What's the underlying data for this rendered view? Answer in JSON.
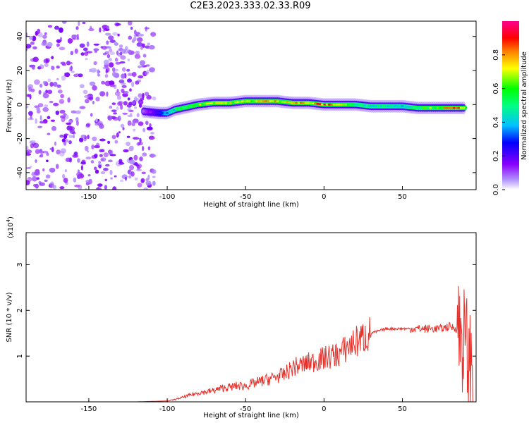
{
  "title": "C2E3.2023.333.02.33.R09",
  "chart_data": [
    {
      "type": "heatmap",
      "xlabel": "Height of straight line (km)",
      "ylabel": "Frequency (Hz)",
      "xlim": [
        -190,
        97
      ],
      "ylim": [
        -50,
        49
      ],
      "xticks": [
        "-150",
        "-100",
        "-50",
        "0",
        "50"
      ],
      "yticks": [
        "40",
        "20",
        "0",
        "-20",
        "-40"
      ],
      "colorbar": {
        "label": "Normalized spectral amplitude",
        "range": [
          0.0,
          1.0
        ],
        "ticks": [
          "0.0",
          "0.2",
          "0.4",
          "0.6",
          "0.8"
        ]
      },
      "ridge": {
        "x": [
          -115,
          -105,
          -100,
          -95,
          -90,
          -80,
          -70,
          -60,
          -50,
          -40,
          -30,
          -20,
          -10,
          0,
          10,
          20,
          30,
          40,
          50,
          60,
          70,
          80,
          90
        ],
        "frequency": [
          -4,
          -5,
          -5,
          -3,
          -2,
          0,
          1,
          1,
          2,
          2,
          2,
          1,
          1,
          0,
          0,
          0,
          -1,
          -1,
          -1,
          -2,
          -2,
          -2,
          -2
        ],
        "amplitude": [
          0.1,
          0.25,
          0.4,
          0.5,
          0.6,
          0.7,
          0.85,
          0.75,
          0.7,
          0.85,
          0.8,
          0.9,
          0.8,
          0.95,
          0.85,
          0.5,
          0.5,
          0.5,
          0.45,
          0.6,
          0.7,
          0.85,
          0.9
        ]
      }
    },
    {
      "type": "line",
      "xlabel": "Height of straight line (km)",
      "ylabel": "SNR (10 * v/v)",
      "scale_label": "(x10",
      "scale_exp": "4",
      "xlim": [
        -190,
        97
      ],
      "ylim": [
        0,
        3.7
      ],
      "xticks": [
        "-150",
        "-100",
        "-50",
        "0",
        "50"
      ],
      "yticks": [
        "1",
        "2",
        "3"
      ],
      "color": "#e8302a",
      "series": [
        {
          "x": [
            -190,
            -120,
            -100,
            -95,
            -90,
            -85,
            -80,
            -75,
            -70,
            -65,
            -60,
            -55,
            -50,
            -45,
            -40,
            -35,
            -30,
            -25,
            -20,
            -15,
            -10,
            -5,
            0,
            5,
            10,
            15,
            20,
            25,
            30,
            35,
            40,
            45,
            50,
            55,
            60,
            65,
            70,
            75,
            80,
            85,
            88,
            90,
            92,
            94,
            96
          ],
          "y": [
            0,
            0,
            0.02,
            0.05,
            0.1,
            0.15,
            0.2,
            0.22,
            0.25,
            0.3,
            0.32,
            0.35,
            0.35,
            0.4,
            0.45,
            0.5,
            0.55,
            0.6,
            0.75,
            0.8,
            0.85,
            0.9,
            0.95,
            1.0,
            1.05,
            1.2,
            1.3,
            1.4,
            1.5,
            1.55,
            1.6,
            1.6,
            1.6,
            1.6,
            1.6,
            1.6,
            1.6,
            1.6,
            1.65,
            1.6,
            1.5,
            1.2,
            1.0,
            0.6,
            0.3
          ]
        }
      ]
    }
  ]
}
